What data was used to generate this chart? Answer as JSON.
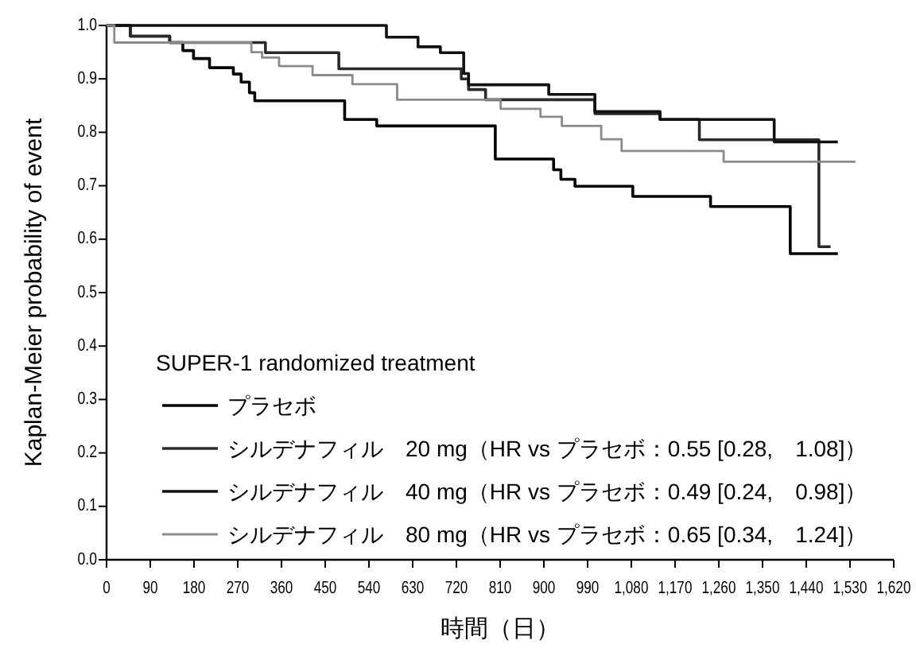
{
  "chart_data": {
    "type": "step",
    "xlabel": "時間（日）",
    "ylabel": "Kaplan-Meier probability of event",
    "legend_title": "SUPER-1 randomized treatment",
    "legend": "bottom left",
    "grid": false,
    "marker": "none",
    "line_style": "solid",
    "xlim": [
      0,
      1620
    ],
    "ylim": [
      0,
      1.0
    ],
    "xticks": [
      0,
      90,
      180,
      270,
      360,
      450,
      540,
      630,
      720,
      810,
      900,
      990,
      {
        "value": 1080,
        "label": "1,080"
      },
      {
        "value": 1170,
        "label": "1,170"
      },
      {
        "value": 1260,
        "label": "1,260"
      },
      {
        "value": 1350,
        "label": "1,350"
      },
      {
        "value": 1440,
        "label": "1,440"
      },
      {
        "value": 1530,
        "label": "1,530"
      },
      {
        "value": 1620,
        "label": "1,620"
      }
    ],
    "yticks": [
      {
        "value": 0,
        "label": "0.0"
      },
      {
        "value": 0.1,
        "label": "0.1"
      },
      {
        "value": 0.2,
        "label": "0.2"
      },
      {
        "value": 0.3,
        "label": "0.3"
      },
      {
        "value": 0.4,
        "label": "0.4"
      },
      {
        "value": 0.5,
        "label": "0.5"
      },
      {
        "value": 0.6,
        "label": "0.6"
      },
      {
        "value": 0.7,
        "label": "0.7"
      },
      {
        "value": 0.8,
        "label": "0.8"
      },
      {
        "value": 0.9,
        "label": "0.9"
      },
      {
        "value": 1.0,
        "label": "1.0"
      }
    ],
    "series": [
      {
        "name": "プラセボ",
        "color": "#000000",
        "x": [
          0,
          49,
          130,
          157,
          179,
          212,
          261,
          277,
          294,
          305,
          490,
          556,
          800,
          920,
          935,
          964,
          1083,
          1243,
          1407,
          1505
        ],
        "values": [
          1.0,
          0.98,
          0.968,
          0.953,
          0.938,
          0.921,
          0.909,
          0.894,
          0.874,
          0.859,
          0.824,
          0.812,
          0.75,
          0.73,
          0.712,
          0.699,
          0.68,
          0.661,
          0.573,
          0.573
        ]
      },
      {
        "name": "シルデナフィル　20 mg（HR vs プラセボ：0.55 [0.28,　1.08]）",
        "color": "#2a2a2a",
        "x": [
          0,
          49,
          130,
          327,
          478,
          730,
          745,
          780,
          1005,
          1139,
          1220,
          1466,
          1490
        ],
        "values": [
          1.0,
          0.98,
          0.968,
          0.949,
          0.919,
          0.9,
          0.88,
          0.861,
          0.835,
          0.824,
          0.786,
          0.586,
          0.586
        ]
      },
      {
        "name": "シルデナフィル　40 mg（HR vs プラセボ：0.49 [0.24,　0.98]）",
        "color": "#111111",
        "x": [
          0,
          576,
          641,
          687,
          735,
          745,
          910,
          1005,
          1139,
          1374,
          1505
        ],
        "values": [
          1.0,
          0.978,
          0.96,
          0.949,
          0.91,
          0.889,
          0.871,
          0.839,
          0.824,
          0.782,
          0.782
        ]
      },
      {
        "name": "シルデナフィル　80 mg（HR vs プラセボ：0.65 [0.34,　1.24]）",
        "color": "#8a8a8a",
        "x": [
          0,
          16,
          298,
          320,
          355,
          424,
          506,
          598,
          811,
          893,
          937,
          1018,
          1060,
          1270,
          1541
        ],
        "values": [
          1.0,
          0.968,
          0.95,
          0.94,
          0.924,
          0.907,
          0.89,
          0.861,
          0.844,
          0.829,
          0.812,
          0.787,
          0.765,
          0.745,
          0.745
        ]
      }
    ]
  }
}
